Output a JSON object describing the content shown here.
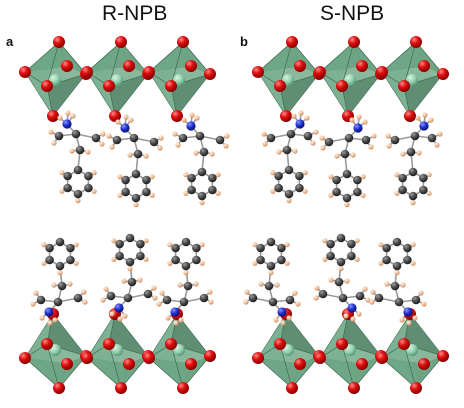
{
  "panels": [
    {
      "label": "a",
      "title": "R-NPB"
    },
    {
      "label": "b",
      "title": "S-NPB"
    }
  ],
  "colors": {
    "octahedron": "#6fa888",
    "octahedron_dark": "#4e8265",
    "metal": "#8fcfad",
    "halide": "#d40000",
    "carbon": "#444444",
    "nitrogen": "#1f2fd0",
    "hydrogen": "#f2c4a0"
  }
}
